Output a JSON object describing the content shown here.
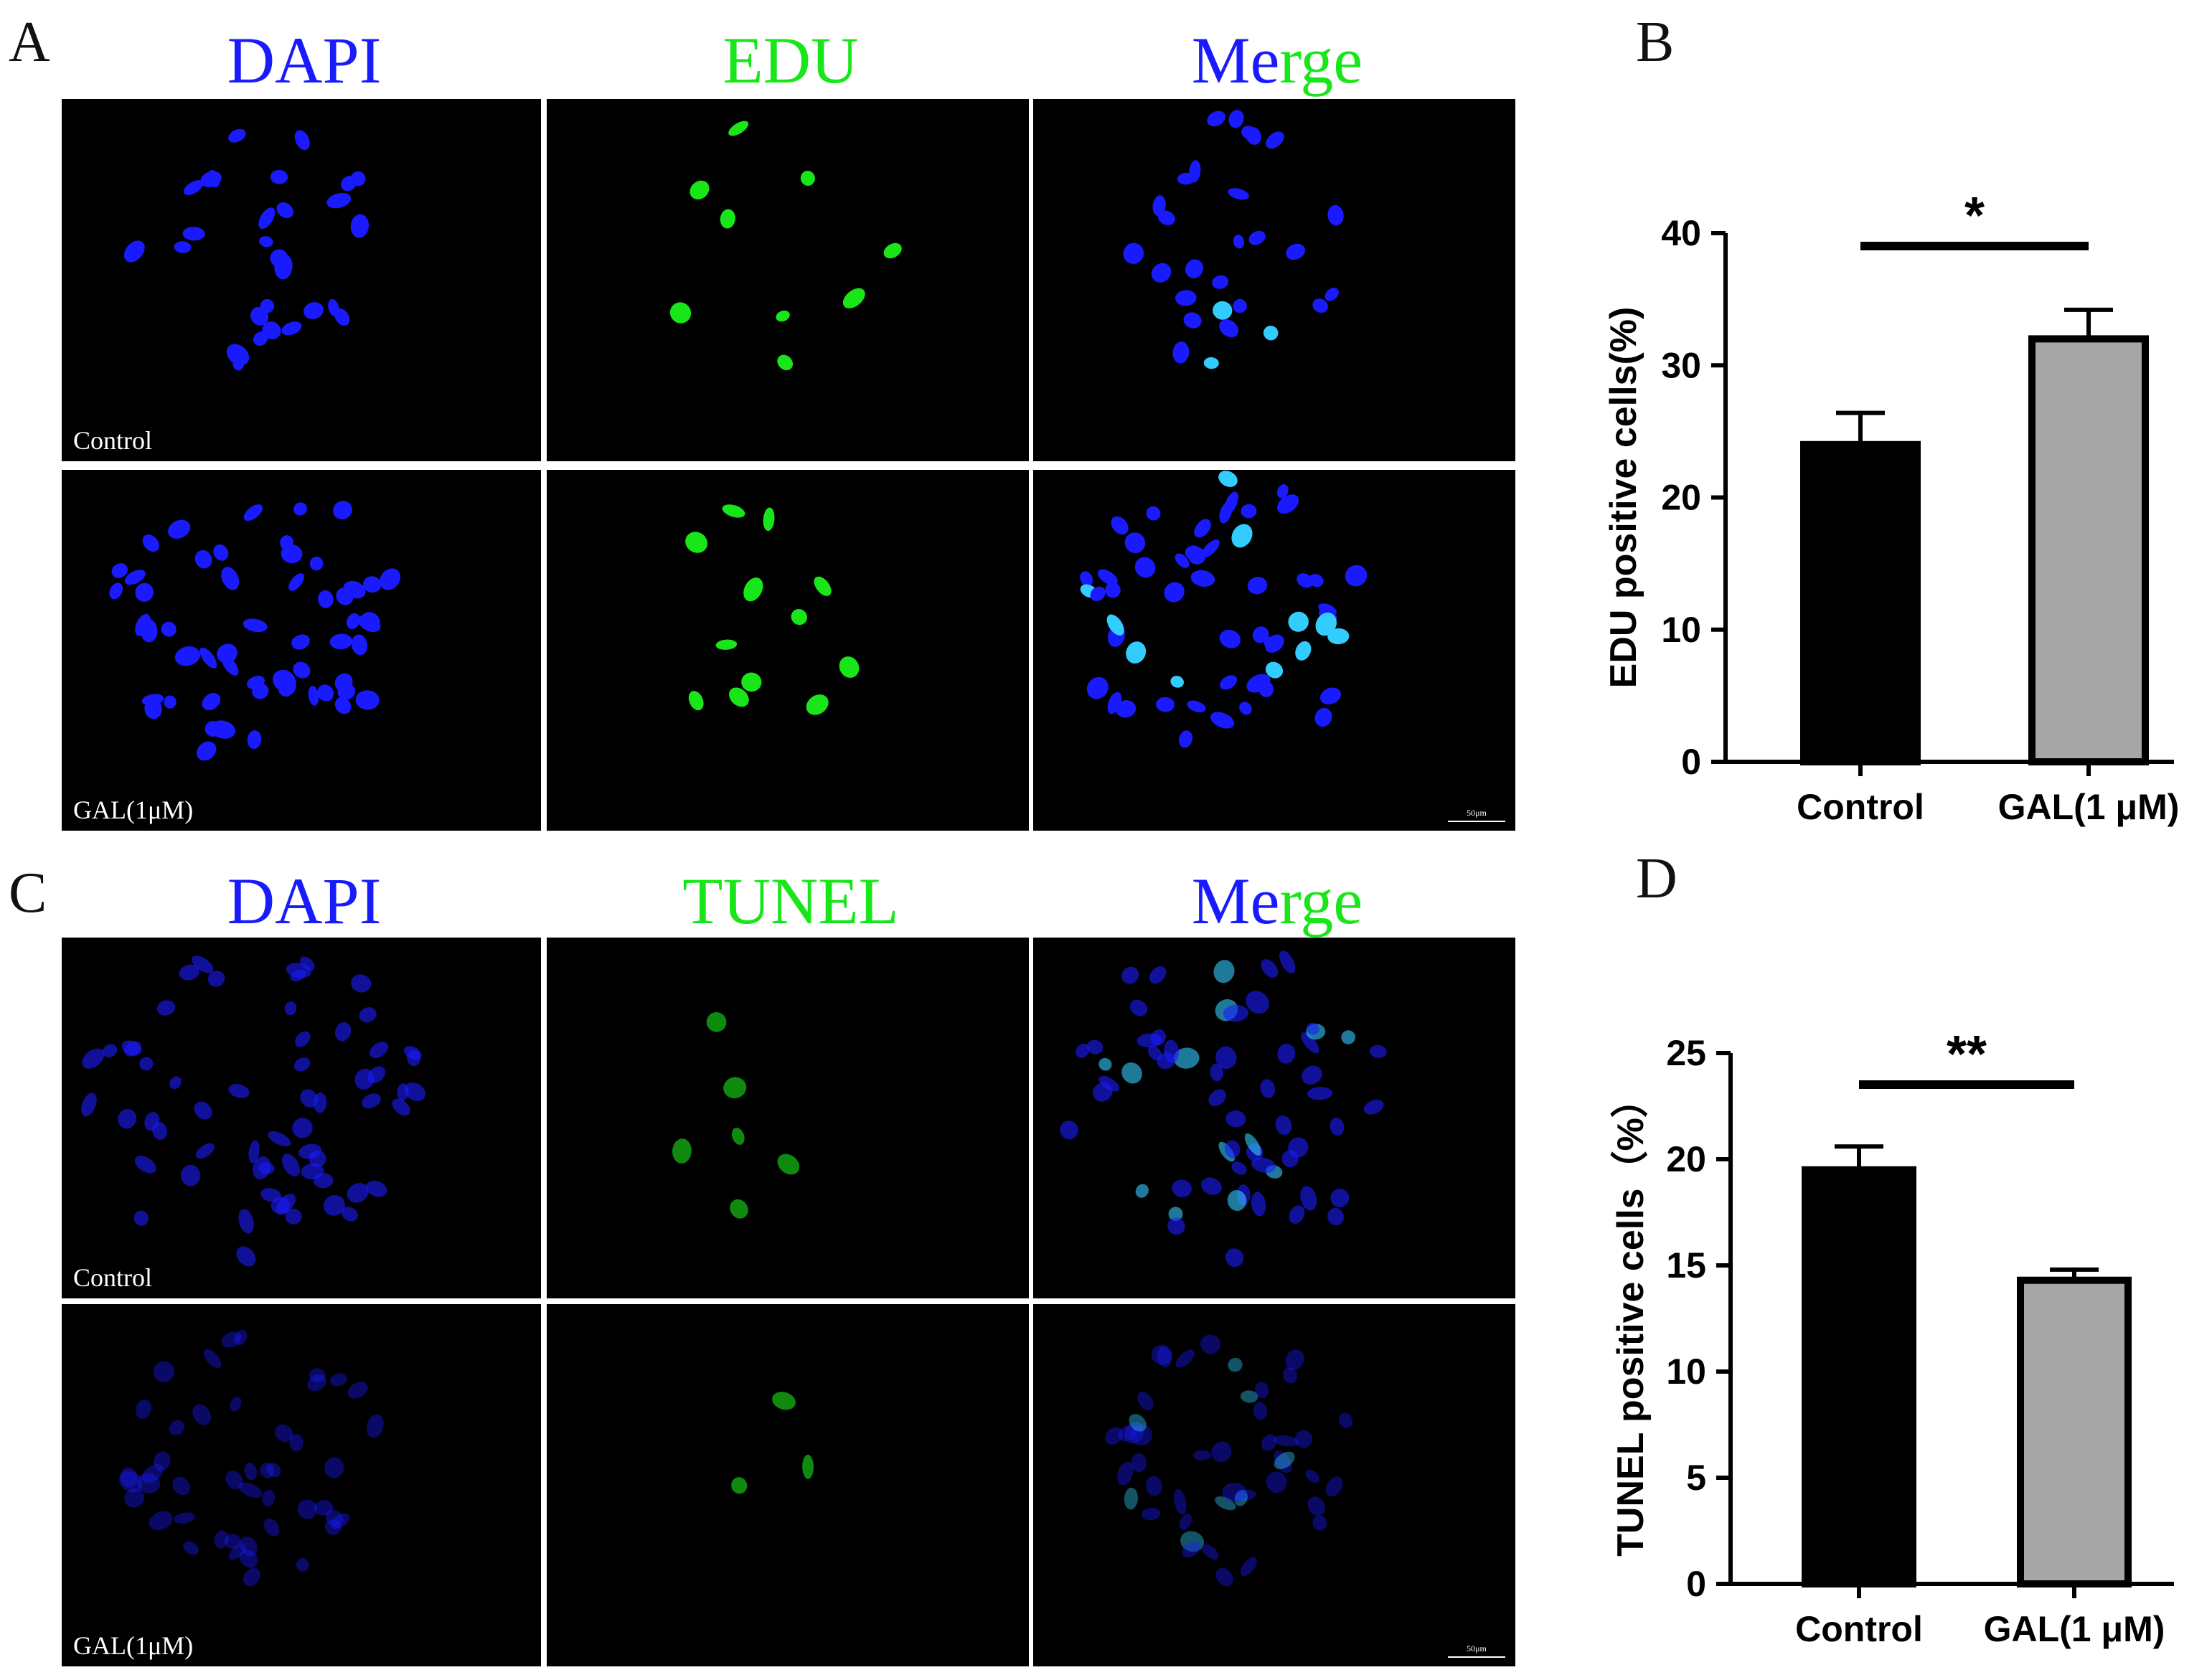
{
  "panel_letters": {
    "a": "A",
    "b": "B",
    "c": "C",
    "d": "D"
  },
  "top_block": {
    "columns": [
      "DAPI",
      "EDU",
      "Merge"
    ],
    "merge_prefix": "Me",
    "merge_suffix": "rge",
    "rows": [
      "Control",
      "GAL(1μM)"
    ],
    "scale_label": "50μm"
  },
  "bottom_block": {
    "columns": [
      "DAPI",
      "TUNEL",
      "Merge"
    ],
    "merge_prefix": "Me",
    "merge_suffix": "rge",
    "rows": [
      "Control",
      "GAL(1μM)"
    ],
    "scale_label": "50μm"
  },
  "colors": {
    "dapi": "#1a1aff",
    "stain": "#19e619",
    "bar_control": "#000000",
    "bar_gal": "#a6a6a6"
  },
  "chart_data": [
    {
      "type": "bar",
      "panel": "B",
      "categories": [
        "Control",
        "GAL(1 μM)"
      ],
      "values": [
        24,
        32
      ],
      "errors": [
        2.4,
        2.2
      ],
      "ylabel": "EDU positive cells(%)",
      "ylim": [
        0,
        40
      ],
      "yticks": [
        0,
        10,
        20,
        30,
        40
      ],
      "significance": "*"
    },
    {
      "type": "bar",
      "panel": "D",
      "categories": [
        "Control",
        "GAL(1 μM)"
      ],
      "values": [
        19.5,
        14.3
      ],
      "errors": [
        1.1,
        0.5
      ],
      "ylabel": "TUNEL positive cells（%）",
      "ylim": [
        0,
        25
      ],
      "yticks": [
        0,
        5,
        10,
        15,
        20,
        25
      ],
      "significance": "**"
    }
  ]
}
